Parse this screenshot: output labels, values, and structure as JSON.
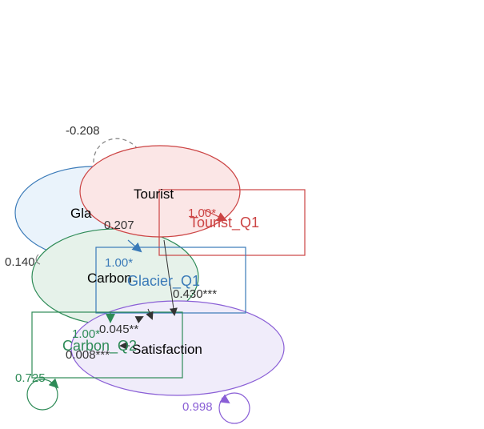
{
  "nodes": {
    "glacier": {
      "label": "Glacier",
      "visible_label": "Gla",
      "color": "#3a7ab8",
      "fill": "#eaf3fb"
    },
    "tourist": {
      "label": "Tourist",
      "color": "#cc4444",
      "fill": "#fbe6e6"
    },
    "carbon": {
      "label": "Carbon",
      "color": "#2e8b57",
      "fill": "#e6f2ea"
    },
    "satisfaction": {
      "label": "Satisfaction",
      "color": "#8a5fd6",
      "fill": "#f0ecfa"
    }
  },
  "indicators": {
    "tourist_q1": {
      "label": "Tourist_Q1",
      "loading": "1.00*",
      "color": "#cc4444"
    },
    "glacier_q1": {
      "label": "Glacier_Q1",
      "loading": "1.00*",
      "color": "#3a7ab8"
    },
    "carbon_q2": {
      "label": "Carbon_Q2",
      "loading": "1.00*",
      "color": "#2e8b57"
    }
  },
  "paths": {
    "glacier_tourist_cov": "-0.208",
    "glacier_carbon_cov": "0.140",
    "glacier_satisfaction": "0.207",
    "tourist_satisfaction": "0.430***",
    "carbon_satisfaction_a": "0.045**",
    "carbon_satisfaction_b": "0.008***"
  },
  "residuals": {
    "carbon_q2": {
      "value": "0.725",
      "color": "#2e8b57"
    },
    "satisfaction": {
      "value": "0.998",
      "color": "#8a5fd6"
    }
  }
}
